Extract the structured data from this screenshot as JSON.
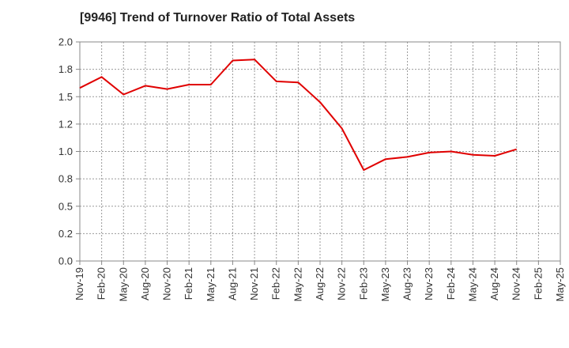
{
  "chart_data": {
    "type": "line",
    "title": "[9946]  Trend of Turnover Ratio of Total Assets",
    "xlabel": "",
    "ylabel": "",
    "ylim": [
      0.0,
      2.0
    ],
    "y_ticks": [
      "0.0",
      "0.2",
      "0.5",
      "0.8",
      "1.0",
      "1.2",
      "1.5",
      "1.8",
      "2.0"
    ],
    "y_tick_values": [
      0.0,
      0.25,
      0.5,
      0.75,
      1.0,
      1.25,
      1.5,
      1.75,
      2.0
    ],
    "categories": [
      "Nov-19",
      "Feb-20",
      "May-20",
      "Aug-20",
      "Nov-20",
      "Feb-21",
      "May-21",
      "Aug-21",
      "Nov-21",
      "Feb-22",
      "May-22",
      "Aug-22",
      "Nov-22",
      "Feb-23",
      "May-23",
      "Aug-23",
      "Nov-23",
      "Feb-24",
      "May-24",
      "Aug-24",
      "Nov-24",
      "Feb-25",
      "May-25"
    ],
    "grid": true,
    "legend": "none",
    "series": [
      {
        "name": "",
        "color": "#e00000",
        "values": [
          1.58,
          1.68,
          1.52,
          1.6,
          1.57,
          1.61,
          1.61,
          1.83,
          1.84,
          1.64,
          1.63,
          1.45,
          1.21,
          0.83,
          0.93,
          0.95,
          0.99,
          1.0,
          0.97,
          0.96,
          1.02,
          null,
          null
        ]
      }
    ]
  }
}
